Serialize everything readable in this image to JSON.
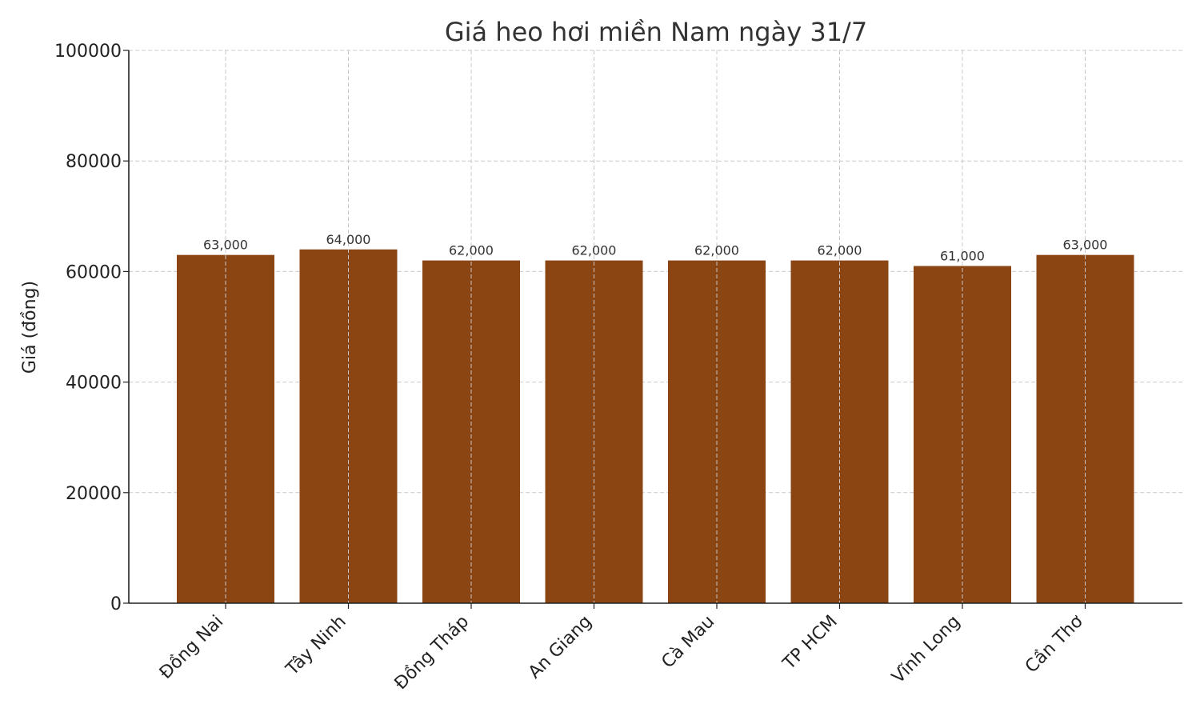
{
  "chart_data": {
    "type": "bar",
    "title": "Giá heo hơi miền Nam ngày 31/7",
    "xlabel": "",
    "ylabel": "Giá (đồng)",
    "categories": [
      "Đồng Nai",
      "Tây Ninh",
      "Đồng Tháp",
      "An Giang",
      "Cà Mau",
      "TP HCM",
      "Vĩnh Long",
      "Cần Thơ"
    ],
    "values": [
      63000,
      64000,
      62000,
      62000,
      62000,
      62000,
      61000,
      63000
    ],
    "value_labels": [
      "63,000",
      "64,000",
      "62,000",
      "62,000",
      "62,000",
      "62,000",
      "61,000",
      "63,000"
    ],
    "ylim": [
      0,
      100000
    ],
    "yticks": [
      0,
      20000,
      40000,
      60000,
      80000,
      100000
    ],
    "ytick_labels": [
      "0",
      "20000",
      "40000",
      "60000",
      "80000",
      "100000"
    ],
    "grid": true,
    "colors": {
      "bar": "#8B4513"
    }
  }
}
